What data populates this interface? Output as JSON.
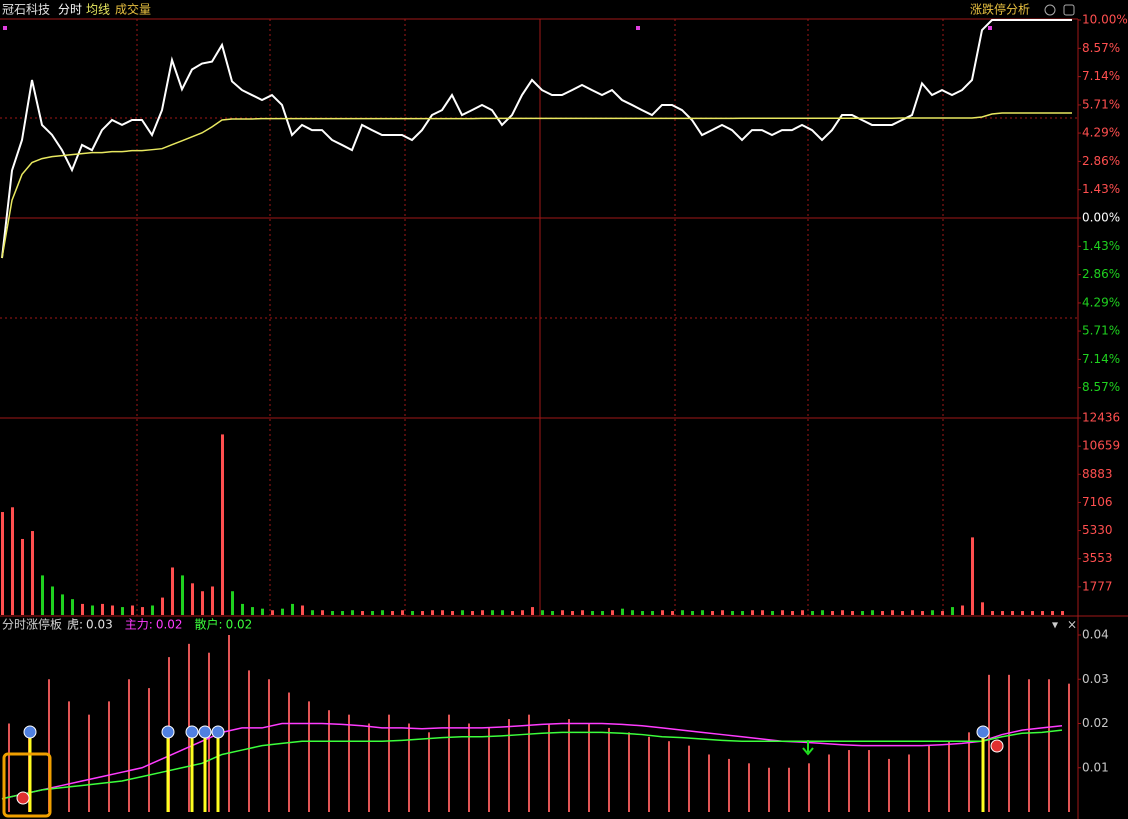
{
  "header": {
    "title": "冠石科技",
    "tool": "涨跌停分析"
  },
  "chart_data": [
    {
      "type": "line",
      "ylim": [
        -10,
        10
      ],
      "yticks": [
        {
          "value": 10,
          "label": "10.00%"
        },
        {
          "value": 8.57,
          "label": "8.57%"
        },
        {
          "value": 7.14,
          "label": "7.14%"
        },
        {
          "value": 5.71,
          "label": "5.71%"
        },
        {
          "value": 4.29,
          "label": "4.29%"
        },
        {
          "value": 2.86,
          "label": "2.86%"
        },
        {
          "value": 1.43,
          "label": "1.43%"
        },
        {
          "value": 0,
          "label": "0.00%"
        },
        {
          "value": -1.43,
          "label": "1.43%"
        },
        {
          "value": -2.86,
          "label": "2.86%"
        },
        {
          "value": -4.29,
          "label": "4.29%"
        },
        {
          "value": -5.71,
          "label": "5.71%"
        },
        {
          "value": -7.14,
          "label": "7.14%"
        },
        {
          "value": -8.57,
          "label": "8.57%"
        }
      ],
      "up_color": "#ff4f4f",
      "down_color": "#1fd11f",
      "flat_color": "#ffffff",
      "series": [
        {
          "name": "分时",
          "color": "#ffffff",
          "values": [
            -2.02,
            2.4,
            3.94,
            6.97,
            4.7,
            4.2,
            3.43,
            2.42,
            3.69,
            3.43,
            4.44,
            4.95,
            4.7,
            4.95,
            4.95,
            4.19,
            5.45,
            7.98,
            6.5,
            7.5,
            7.8,
            7.9,
            8.74,
            6.9,
            6.46,
            6.21,
            5.96,
            6.21,
            5.71,
            4.19,
            4.7,
            4.44,
            4.44,
            3.94,
            3.69,
            3.43,
            4.7,
            4.44,
            4.19,
            4.19,
            4.19,
            3.94,
            4.44,
            5.2,
            5.45,
            6.21,
            5.2,
            5.45,
            5.71,
            5.45,
            4.7,
            5.2,
            6.21,
            6.97,
            6.46,
            6.21,
            6.21,
            6.46,
            6.72,
            6.46,
            6.21,
            6.46,
            5.96,
            5.71,
            5.45,
            5.2,
            5.71,
            5.71,
            5.45,
            4.95,
            4.19,
            4.44,
            4.7,
            4.44,
            3.94,
            4.44,
            4.44,
            4.19,
            4.44,
            4.44,
            4.7,
            4.44,
            3.94,
            4.44,
            5.2,
            5.2,
            4.95,
            4.7,
            4.7,
            4.7,
            4.95,
            5.2,
            6.8,
            6.21,
            6.46,
            6.21,
            6.46,
            6.97,
            9.49,
            10,
            10,
            10,
            10,
            10,
            10,
            10,
            10,
            10
          ]
        },
        {
          "name": "均线",
          "color": "#e8e860",
          "values": [
            -2.02,
            0.9,
            2.2,
            2.8,
            3.0,
            3.1,
            3.15,
            3.2,
            3.25,
            3.3,
            3.3,
            3.35,
            3.35,
            3.4,
            3.4,
            3.45,
            3.5,
            3.7,
            3.9,
            4.1,
            4.3,
            4.6,
            4.95,
            5.0,
            5.0,
            5.0,
            5.02,
            5.02,
            5.02,
            5.02,
            5.02,
            5.02,
            5.02,
            5.02,
            5.02,
            5.02,
            5.02,
            5.02,
            5.02,
            5.02,
            5.02,
            5.02,
            5.02,
            5.02,
            5.02,
            5.02,
            5.02,
            5.02,
            5.03,
            5.03,
            5.03,
            5.03,
            5.03,
            5.03,
            5.03,
            5.03,
            5.03,
            5.03,
            5.03,
            5.03,
            5.03,
            5.03,
            5.03,
            5.03,
            5.03,
            5.03,
            5.03,
            5.03,
            5.03,
            5.03,
            5.03,
            5.03,
            5.03,
            5.03,
            5.04,
            5.04,
            5.04,
            5.04,
            5.04,
            5.04,
            5.04,
            5.04,
            5.04,
            5.04,
            5.04,
            5.04,
            5.04,
            5.04,
            5.04,
            5.04,
            5.05,
            5.05,
            5.05,
            5.05,
            5.05,
            5.05,
            5.05,
            5.05,
            5.1,
            5.25,
            5.3,
            5.3,
            5.3,
            5.3,
            5.3,
            5.3,
            5.3,
            5.3
          ]
        }
      ]
    },
    {
      "type": "bar",
      "title": "成交量",
      "ylim": [
        0,
        12436
      ],
      "yticks": [
        1777,
        3553,
        5330,
        7106,
        8883,
        10659,
        12436
      ],
      "tick_color": "#ff4f4f",
      "values": [
        6500,
        6800,
        4800,
        5300,
        2500,
        1800,
        1300,
        1000,
        700,
        600,
        700,
        600,
        500,
        600,
        500,
        600,
        1100,
        3000,
        2500,
        2000,
        1500,
        1800,
        11400,
        1500,
        700,
        500,
        400,
        300,
        400,
        700,
        600,
        300,
        300,
        250,
        250,
        300,
        250,
        250,
        300,
        250,
        300,
        250,
        250,
        300,
        300,
        250,
        300,
        250,
        300,
        300,
        300,
        250,
        300,
        500,
        300,
        250,
        300,
        250,
        300,
        250,
        250,
        300,
        400,
        300,
        250,
        250,
        300,
        250,
        300,
        250,
        300,
        250,
        300,
        250,
        250,
        300,
        300,
        250,
        300,
        250,
        300,
        250,
        300,
        250,
        300,
        250,
        250,
        300,
        250,
        300,
        250,
        300,
        250,
        300,
        250,
        500,
        600,
        4900,
        800,
        250,
        250,
        250,
        250,
        250,
        250,
        250,
        250
      ]
    },
    {
      "type": "combo",
      "title": "分时涨停板",
      "ylim": [
        0,
        0.04
      ],
      "yticks": [
        0.01,
        0.02,
        0.03,
        0.04
      ],
      "tick_color": "#c8c8c8",
      "series": [
        {
          "name": "虎:",
          "type": "bar",
          "color": "#e25555",
          "latest": 0.03,
          "values": [
            0.02,
            0.018,
            0.03,
            0.025,
            0.022,
            0.025,
            0.03,
            0.028,
            0.035,
            0.038,
            0.036,
            0.04,
            0.032,
            0.03,
            0.027,
            0.025,
            0.023,
            0.022,
            0.02,
            0.022,
            0.02,
            0.018,
            0.022,
            0.02,
            0.019,
            0.021,
            0.022,
            0.02,
            0.021,
            0.02,
            0.019,
            0.018,
            0.017,
            0.016,
            0.015,
            0.013,
            0.012,
            0.011,
            0.01,
            0.01,
            0.011,
            0.013,
            0.014,
            0.014,
            0.012,
            0.013,
            0.015,
            0.016,
            0.018,
            0.031,
            0.031,
            0.03,
            0.03,
            0.029
          ]
        },
        {
          "name": "主力:",
          "type": "line",
          "color": "#ff3cff",
          "latest": 0.02,
          "values": [
            0.003,
            0.004,
            0.005,
            0.006,
            0.007,
            0.008,
            0.009,
            0.01,
            0.012,
            0.014,
            0.016,
            0.018,
            0.019,
            0.019,
            0.02,
            0.02,
            0.02,
            0.0198,
            0.0195,
            0.019,
            0.019,
            0.0188,
            0.019,
            0.019,
            0.019,
            0.0192,
            0.0195,
            0.0198,
            0.02,
            0.02,
            0.02,
            0.0198,
            0.0195,
            0.019,
            0.0185,
            0.018,
            0.0175,
            0.017,
            0.0165,
            0.016,
            0.0158,
            0.0155,
            0.0152,
            0.015,
            0.015,
            0.015,
            0.015,
            0.0152,
            0.0155,
            0.016,
            0.0175,
            0.0185,
            0.019,
            0.0195
          ]
        },
        {
          "name": "散户:",
          "type": "line",
          "color": "#3cff3c",
          "latest": 0.02,
          "values": [
            0.003,
            0.004,
            0.005,
            0.0055,
            0.006,
            0.0065,
            0.007,
            0.008,
            0.009,
            0.01,
            0.011,
            0.013,
            0.014,
            0.015,
            0.0155,
            0.016,
            0.016,
            0.016,
            0.016,
            0.016,
            0.0162,
            0.0165,
            0.0168,
            0.017,
            0.017,
            0.0172,
            0.0175,
            0.0178,
            0.018,
            0.018,
            0.018,
            0.0178,
            0.0175,
            0.017,
            0.0168,
            0.0165,
            0.0162,
            0.016,
            0.016,
            0.016,
            0.016,
            0.016,
            0.016,
            0.016,
            0.016,
            0.016,
            0.016,
            0.016,
            0.016,
            0.016,
            0.017,
            0.0178,
            0.018,
            0.0185
          ]
        }
      ]
    }
  ]
}
